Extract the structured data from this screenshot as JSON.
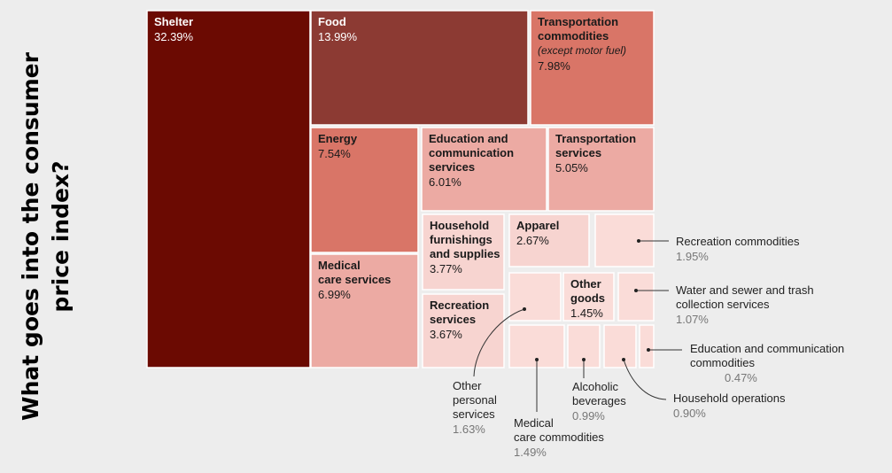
{
  "title": "What goes into the consumer price index?",
  "colors": {
    "background": "#ededed",
    "darkest": "#6b0a02",
    "dark": "#8c3a33",
    "medium": "#d97567",
    "light": "#ecaaa3",
    "pale": "#f7d4d0",
    "palest": "#fadcd8"
  },
  "chart_data": {
    "type": "treemap",
    "title": "What goes into the consumer price index?",
    "items": [
      {
        "label": "Shelter",
        "value": 32.39,
        "value_label": "32.39%"
      },
      {
        "label": "Food",
        "value": 13.99,
        "value_label": "13.99%"
      },
      {
        "label": "Transportation commodities",
        "note": "(except motor fuel)",
        "value": 7.98,
        "value_label": "7.98%"
      },
      {
        "label": "Energy",
        "value": 7.54,
        "value_label": "7.54%"
      },
      {
        "label": "Medical care services",
        "value": 6.99,
        "value_label": "6.99%"
      },
      {
        "label": "Education and communication services",
        "value": 6.01,
        "value_label": "6.01%"
      },
      {
        "label": "Transportation services",
        "value": 5.05,
        "value_label": "5.05%"
      },
      {
        "label": "Household furnishings and supplies",
        "value": 3.77,
        "value_label": "3.77%"
      },
      {
        "label": "Recreation services",
        "value": 3.67,
        "value_label": "3.67%"
      },
      {
        "label": "Apparel",
        "value": 2.67,
        "value_label": "2.67%"
      },
      {
        "label": "Recreation commodities",
        "value": 1.95,
        "value_label": "1.95%"
      },
      {
        "label": "Other personal services",
        "value": 1.63,
        "value_label": "1.63%"
      },
      {
        "label": "Medical care commodities",
        "value": 1.49,
        "value_label": "1.49%"
      },
      {
        "label": "Other goods",
        "value": 1.45,
        "value_label": "1.45%"
      },
      {
        "label": "Water and sewer and trash collection services",
        "value": 1.07,
        "value_label": "1.07%"
      },
      {
        "label": "Alcoholic beverages",
        "value": 0.99,
        "value_label": "0.99%"
      },
      {
        "label": "Household operations",
        "value": 0.9,
        "value_label": "0.90%"
      },
      {
        "label": "Education and communication commodities",
        "value": 0.47,
        "value_label": "0.47%"
      }
    ]
  }
}
